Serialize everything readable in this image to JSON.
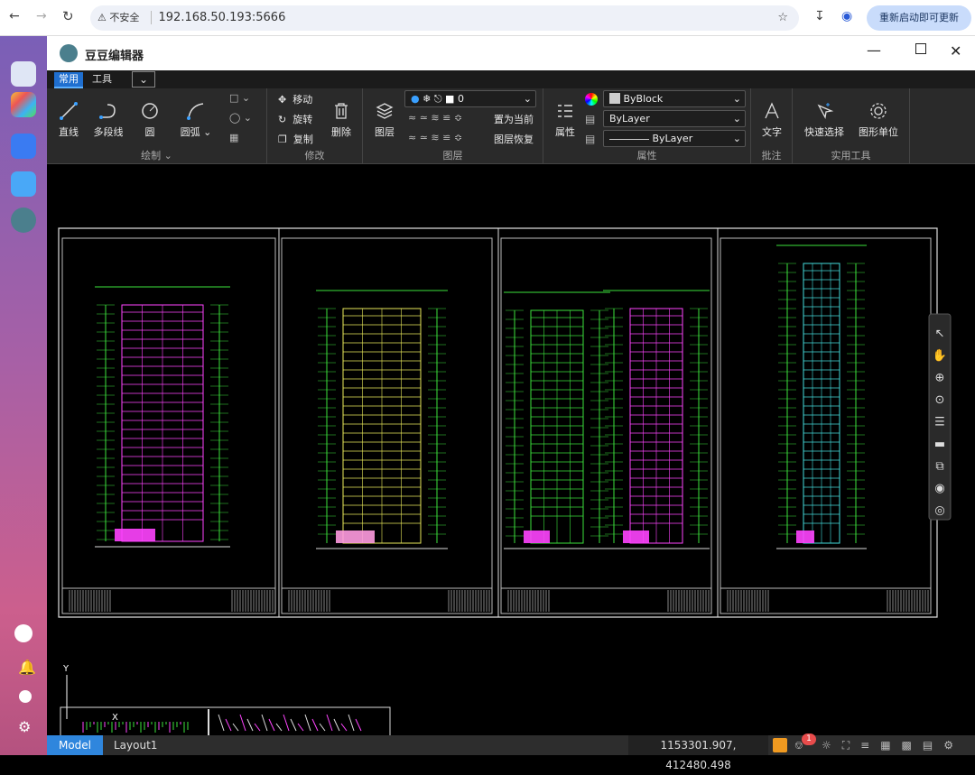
{
  "browser": {
    "security": "不安全",
    "url": "192.168.50.193:5666",
    "update_button": "重新启动即可更新"
  },
  "app": {
    "title": "豆豆编辑器"
  },
  "tabs": [
    "常用",
    "工具"
  ],
  "ribbon": {
    "draw": {
      "tools": [
        "直线",
        "多段线",
        "圆",
        "圆弧"
      ],
      "group": "绘制"
    },
    "modify": {
      "tools": [
        "移动",
        "旋转",
        "复制",
        "删除"
      ],
      "group": "修改"
    },
    "layer": {
      "tool": "图层",
      "current_layer": "0",
      "actions": [
        "置为当前",
        "图层恢复"
      ],
      "group": "图层"
    },
    "properties": {
      "tool": "属性",
      "color": "ByBlock",
      "linetype": "ByLayer",
      "lineweight": "ByLayer",
      "group": "属性"
    },
    "annotation": {
      "tools": [
        "文字"
      ],
      "group": "批注"
    },
    "utilities": {
      "tools": [
        "快速选择",
        "图形单位"
      ],
      "group": "实用工具"
    }
  },
  "canvas": {
    "y_axis": "Y",
    "x_axis": "X"
  },
  "status": {
    "layouts": [
      "Model",
      "Layout1"
    ],
    "coordinates": "1153301.907, 412480.498",
    "notification_count": 1
  }
}
